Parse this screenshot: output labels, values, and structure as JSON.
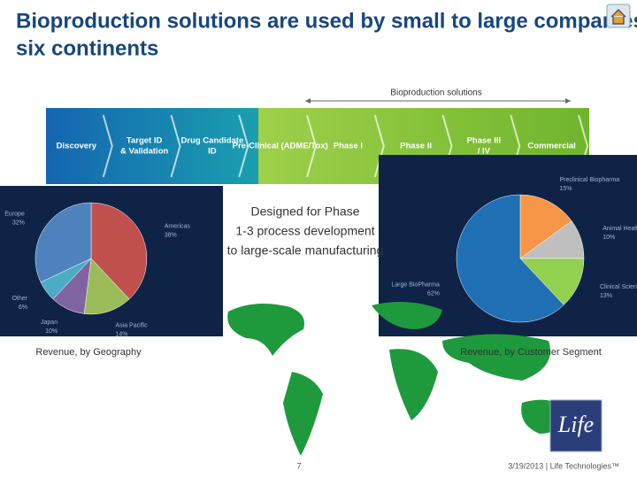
{
  "header": {
    "title": "Bioproduction solutions are used by small to large companies across six continents"
  },
  "pipeline": {
    "bracket_label": "Bioproduction solutions",
    "stages": [
      "Discovery",
      "Target ID & Validation",
      "Drug Candidate ID",
      "Pre-Clinical (ADME/Tox)",
      "Phase I",
      "Phase II",
      "Phase III / IV",
      "Commercial"
    ]
  },
  "note": "Designed for Phase 1-3 process development to large-scale manufacturing",
  "chart_data": [
    {
      "type": "pie",
      "title": "Revenue, by Geography",
      "categories": [
        "Americas",
        "Asia Pacific",
        "Japan",
        "Other",
        "Europe"
      ],
      "values": [
        38,
        14,
        10,
        6,
        32
      ],
      "value_labels": [
        "38%",
        "14%",
        "10%",
        "6%",
        "32%"
      ],
      "colors": [
        "#c0504d",
        "#9bbb59",
        "#8064a2",
        "#4bacc6",
        "#4f81bd"
      ]
    },
    {
      "type": "pie",
      "title": "Revenue, by Customer Segment",
      "categories": [
        "Preclinical Biopharma",
        "Animal Health",
        "Clinical Sciences",
        "Large BioPharma"
      ],
      "values": [
        15,
        10,
        13,
        62
      ],
      "value_labels": [
        "15%",
        "10%",
        "13%",
        "62%"
      ],
      "colors": [
        "#f79646",
        "#bfbfbf",
        "#92d050",
        "#1f6fb5"
      ]
    }
  ],
  "footer": {
    "page": "7",
    "date_company": "3/19/2013 | Life Technologies™"
  },
  "logo": "Life"
}
